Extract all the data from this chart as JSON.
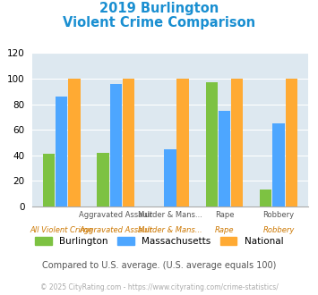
{
  "title_line1": "2019 Burlington",
  "title_line2": "Violent Crime Comparison",
  "series": {
    "Burlington": [
      41,
      42,
      0,
      97,
      13
    ],
    "Massachusetts": [
      86,
      96,
      45,
      75,
      65
    ],
    "National": [
      100,
      100,
      100,
      100,
      100
    ]
  },
  "colors": {
    "Burlington": "#7dc242",
    "Massachusetts": "#4da6ff",
    "National": "#ffaa33"
  },
  "ylim": [
    0,
    120
  ],
  "yticks": [
    0,
    20,
    40,
    60,
    80,
    100,
    120
  ],
  "plot_bg": "#dde8f0",
  "title_color": "#1a8fd1",
  "x_top_labels": [
    "",
    "Aggravated Assault",
    "Murder & Mans...",
    "Rape",
    "Robbery"
  ],
  "x_bottom_labels": [
    "All Violent Crime",
    "Aggravated Assault",
    "Murder & Mans...",
    "Rape",
    "Robbery"
  ],
  "annotation": "Compared to U.S. average. (U.S. average equals 100)",
  "annotation_color": "#555555",
  "footer": "© 2025 CityRating.com - https://www.cityrating.com/crime-statistics/",
  "footer_color": "#aaaaaa"
}
